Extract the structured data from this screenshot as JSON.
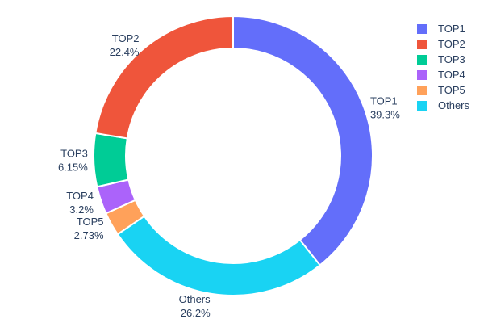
{
  "chart_data": {
    "type": "pie",
    "subtype": "donut",
    "title": "",
    "labels": [
      "TOP1",
      "TOP2",
      "TOP3",
      "TOP4",
      "TOP5",
      "Others"
    ],
    "values": [
      39.3,
      22.4,
      6.15,
      3.2,
      2.73,
      26.2
    ],
    "percent_labels": [
      "39.3%",
      "22.4%",
      "6.15%",
      "3.2%",
      "2.73%",
      "26.2%"
    ],
    "colors": [
      "#636efa",
      "#ef553b",
      "#00cc96",
      "#ab63fa",
      "#ffa15a",
      "#19d3f3"
    ],
    "hole": 0.77,
    "start_angle": "12-o-clock",
    "order_clockwise_from_top": [
      "TOP1",
      "Others",
      "TOP5",
      "TOP4",
      "TOP3",
      "TOP2"
    ],
    "slice_border_color": "#ffffff",
    "label_text_color": "#2a3f5f",
    "background_color": "#ffffff",
    "legend": {
      "position": "top-right",
      "entries": [
        "TOP1",
        "TOP2",
        "TOP3",
        "TOP4",
        "TOP5",
        "Others"
      ]
    }
  }
}
